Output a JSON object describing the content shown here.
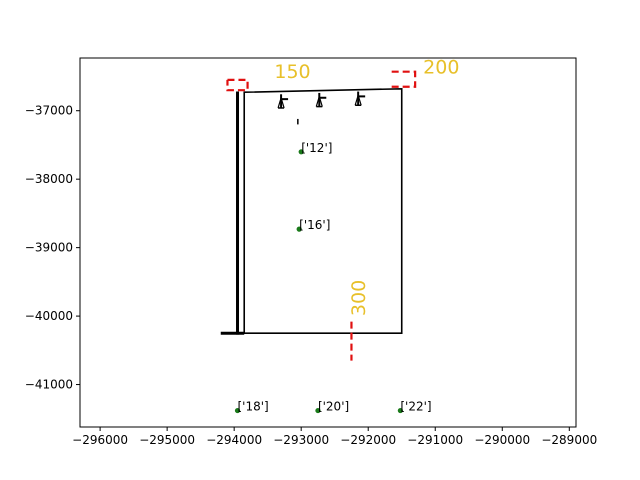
{
  "chart_data": {
    "type": "scatter",
    "title": "",
    "xlabel": "",
    "ylabel": "",
    "xlim": [
      -296300,
      -288900
    ],
    "ylim": [
      -41620,
      -36230
    ],
    "grid": false,
    "x_ticks": [
      -296000,
      -295000,
      -294000,
      -293000,
      -292000,
      -291000,
      -290000,
      -289000
    ],
    "y_ticks": [
      -37000,
      -38000,
      -39000,
      -40000,
      -41000
    ],
    "x_tick_labels": [
      "−296000",
      "−295000",
      "−294000",
      "−293000",
      "−292000",
      "−291000",
      "−290000",
      "−289000"
    ],
    "y_tick_labels": [
      "−37000",
      "−38000",
      "−39000",
      "−40000",
      "−41000"
    ],
    "points": [
      {
        "x": -293000,
        "y": -37600,
        "label": "['12']"
      },
      {
        "x": -293030,
        "y": -38730,
        "label": "['16']"
      },
      {
        "x": -293950,
        "y": -41380,
        "label": "['18']"
      },
      {
        "x": -292750,
        "y": -41380,
        "label": "['20']"
      },
      {
        "x": -291520,
        "y": -41380,
        "label": "['22']"
      }
    ],
    "point_color": "#1a7a1a",
    "outline": [
      [
        -293850,
        -36730
      ],
      [
        -291500,
        -36680
      ],
      [
        -291500,
        -40250
      ],
      [
        -293850,
        -40250
      ]
    ],
    "outline_color": "#000000",
    "wall_lines": [
      [
        [
          -293950,
          -36720
        ],
        [
          -293950,
          -40270
        ]
      ],
      [
        [
          -294200,
          -40250
        ],
        [
          -293850,
          -40250
        ]
      ]
    ],
    "stairs": [
      {
        "x": -293300,
        "y_top": -36760,
        "y_bottom": -36960
      },
      {
        "x": -292730,
        "y_top": -36740,
        "y_bottom": -36940
      },
      {
        "x": -292150,
        "y_top": -36720,
        "y_bottom": -36920
      }
    ],
    "dimensions": [
      {
        "label": "150",
        "color": "#e8c02a",
        "text_x": -293400,
        "text_y": -36520,
        "rotation": 0,
        "path": [
          [
            -294100,
            -36550
          ],
          [
            -293800,
            -36550
          ],
          [
            -293800,
            -36700
          ],
          [
            -294100,
            -36700
          ],
          [
            -294100,
            -36550
          ]
        ]
      },
      {
        "label": "200",
        "color": "#e8c02a",
        "text_x": -291180,
        "text_y": -36460,
        "rotation": 0,
        "path": [
          [
            -291650,
            -36430
          ],
          [
            -291300,
            -36430
          ],
          [
            -291300,
            -36650
          ],
          [
            -291650,
            -36650
          ]
        ]
      },
      {
        "label": "300",
        "color": "#e8c02a",
        "text_x": -292050,
        "text_y": -40000,
        "rotation": -90,
        "path": [
          [
            -292250,
            -40080
          ],
          [
            -292250,
            -40650
          ]
        ]
      }
    ],
    "dimension_line_color": "#e01010"
  }
}
